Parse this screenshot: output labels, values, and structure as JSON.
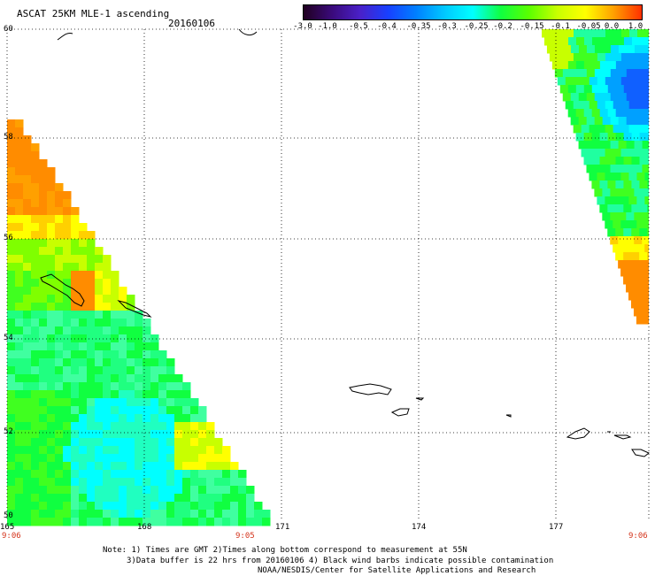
{
  "header": {
    "title": "ASCAT 25KM MLE-1 ascending",
    "date": "20160106"
  },
  "colorbar": {
    "tick_labels": [
      "-3.0",
      "-1.0",
      "-0.5",
      "-0.4",
      "-0.35",
      "-0.3",
      "-0.25",
      "-0.2",
      "-0.15",
      "-0.1",
      "-0.05",
      "0.0",
      "1.0"
    ],
    "colors": [
      "#200020",
      "#3a0a7a",
      "#4a20c8",
      "#1840ff",
      "#0080ff",
      "#00c8ff",
      "#00ffff",
      "#10ff40",
      "#5aff00",
      "#c8ff00",
      "#ffff00",
      "#ffa000",
      "#ff3000"
    ]
  },
  "map": {
    "lat_labels": [
      "60",
      "58",
      "56",
      "54",
      "52",
      "50"
    ],
    "lon_labels": [
      "165",
      "168",
      "171",
      "174",
      "177"
    ],
    "time_labels": [
      "9:06",
      "9:05",
      "9:06"
    ]
  },
  "footer": {
    "line1": "Note: 1) Times are GMT 2)Times along bottom correspond to measurement at 55N",
    "line2": "3)Data buffer is 22 hrs from 20160106 4) Black wind barbs indicate possible contamination",
    "line3": "NOAA/NESDIS/Center for Satellite Applications and Research"
  }
}
